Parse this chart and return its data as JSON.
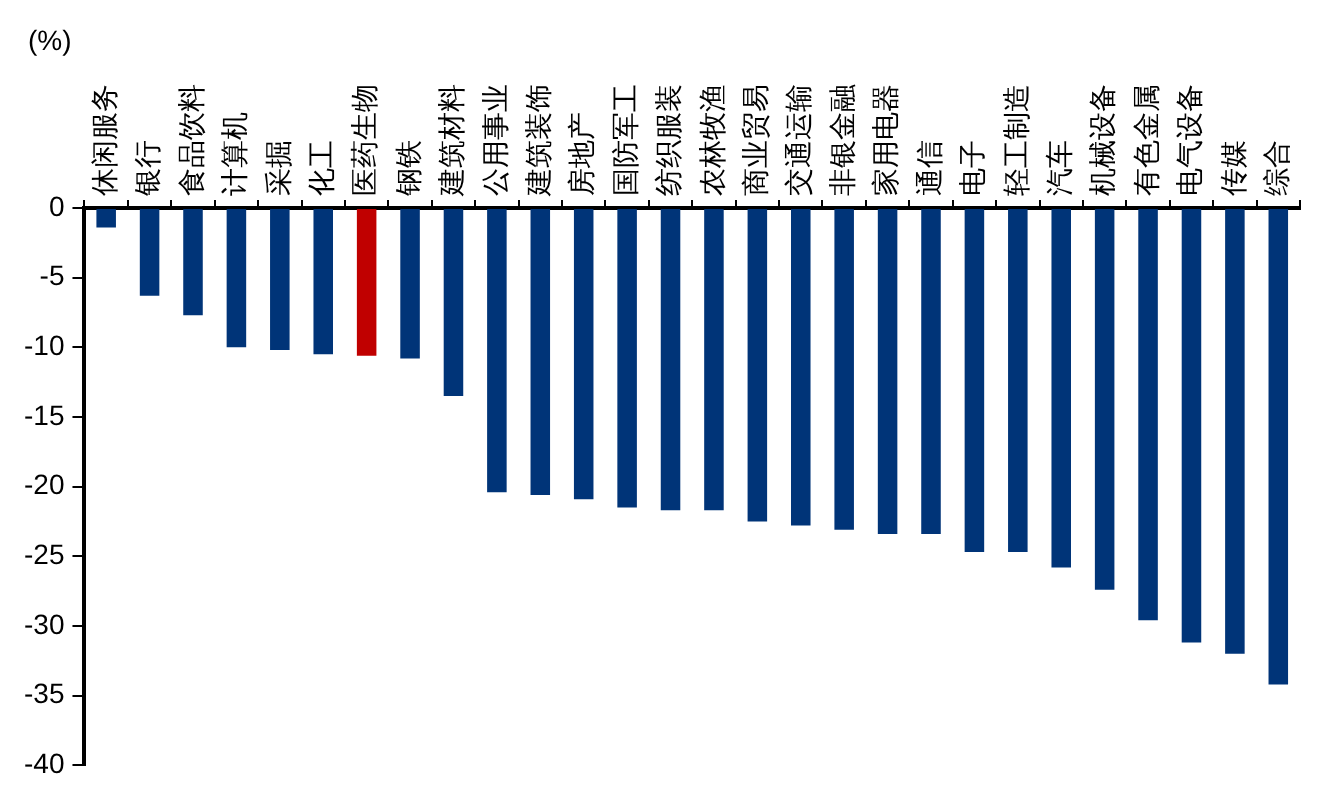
{
  "chart_data": {
    "type": "bar",
    "ylabel": "(%)",
    "categories": [
      "休闲服务",
      "银行",
      "食品饮料",
      "计算机",
      "采掘",
      "化工",
      "医药生物",
      "钢铁",
      "建筑材料",
      "公用事业",
      "建筑装饰",
      "房地产",
      "国防军工",
      "纺织服装",
      "农林牧渔",
      "商业贸易",
      "交通运输",
      "非银金融",
      "家用电器",
      "通信",
      "电子",
      "轻工制造",
      "汽车",
      "机械设备",
      "有色金属",
      "电气设备",
      "传媒",
      "综合"
    ],
    "values": [
      -1.4,
      -6.3,
      -7.7,
      -10,
      -10.2,
      -10.5,
      -10.6,
      -10.8,
      -13.5,
      -20.4,
      -20.6,
      -20.9,
      -21.5,
      -21.7,
      -21.7,
      -22.5,
      -22.8,
      -23.1,
      -23.4,
      -23.4,
      -24.7,
      -24.7,
      -25.8,
      -27.4,
      -29.6,
      -31.2,
      -32.0,
      -34.2
    ],
    "colors": [
      "#003478",
      "#003478",
      "#003478",
      "#003478",
      "#003478",
      "#003478",
      "#c00000",
      "#003478",
      "#003478",
      "#003478",
      "#003478",
      "#003478",
      "#003478",
      "#003478",
      "#003478",
      "#003478",
      "#003478",
      "#003478",
      "#003478",
      "#003478",
      "#003478",
      "#003478",
      "#003478",
      "#003478",
      "#003478",
      "#003478",
      "#003478",
      "#003478"
    ],
    "ylim": [
      -40,
      0
    ],
    "yticks": [
      -40,
      -35,
      -30,
      -25,
      -20,
      -15,
      -10,
      -5,
      0
    ],
    "grid": false,
    "legend": false
  }
}
